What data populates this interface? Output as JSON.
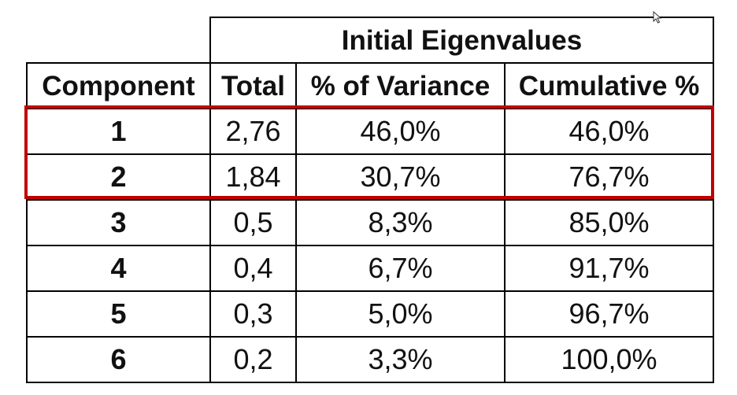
{
  "table": {
    "group_header": "Initial Eigenvalues",
    "columns": [
      "Component",
      "Total",
      "% of Variance",
      "Cumulative %"
    ],
    "rows": [
      {
        "component": "1",
        "total": "2,76",
        "variance": "46,0%",
        "cumulative": "46,0%"
      },
      {
        "component": "2",
        "total": "1,84",
        "variance": "30,7%",
        "cumulative": "76,7%"
      },
      {
        "component": "3",
        "total": "0,5",
        "variance": "8,3%",
        "cumulative": "85,0%"
      },
      {
        "component": "4",
        "total": "0,4",
        "variance": "6,7%",
        "cumulative": "91,7%"
      },
      {
        "component": "5",
        "total": "0,3",
        "variance": "5,0%",
        "cumulative": "96,7%"
      },
      {
        "component": "6",
        "total": "0,2",
        "variance": "3,3%",
        "cumulative": "100,0%"
      }
    ],
    "highlighted_rows": [
      "1",
      "2"
    ],
    "highlight_color": "#c00000"
  },
  "cursor": {
    "icon": "mouse-pointer-icon"
  }
}
